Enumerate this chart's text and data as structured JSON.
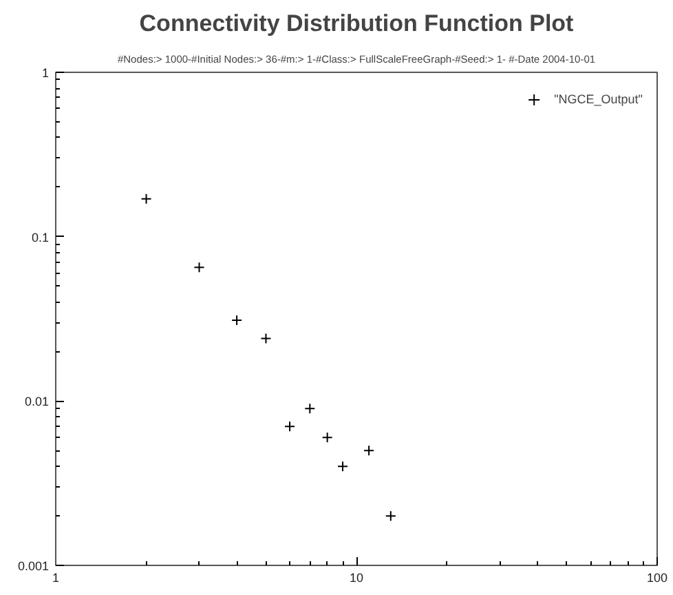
{
  "chart_data": {
    "type": "scatter",
    "title": "Connectivity Distribution Function Plot",
    "subtitle": "#Nodes:> 1000-#Initial Nodes:> 36-#m:> 1-#Class:> FullScaleFreeGraph-#Seed:> 1- #-Date 2004-10-01",
    "log": "xy",
    "xlim": [
      1,
      100
    ],
    "ylim": [
      0.001,
      1
    ],
    "xticks": [
      1,
      10,
      100
    ],
    "yticks": [
      0.001,
      0.01,
      0.1,
      1
    ],
    "grid": false,
    "legend": "top right",
    "marker": "cross",
    "series": [
      {
        "name": "\"NGCE_Output\"",
        "color": "#000000",
        "x": [
          2,
          3,
          4,
          5,
          6,
          7,
          8,
          9,
          11,
          13
        ],
        "values": [
          0.17,
          0.065,
          0.031,
          0.024,
          0.007,
          0.009,
          0.006,
          0.004,
          0.005,
          0.002
        ]
      }
    ]
  }
}
